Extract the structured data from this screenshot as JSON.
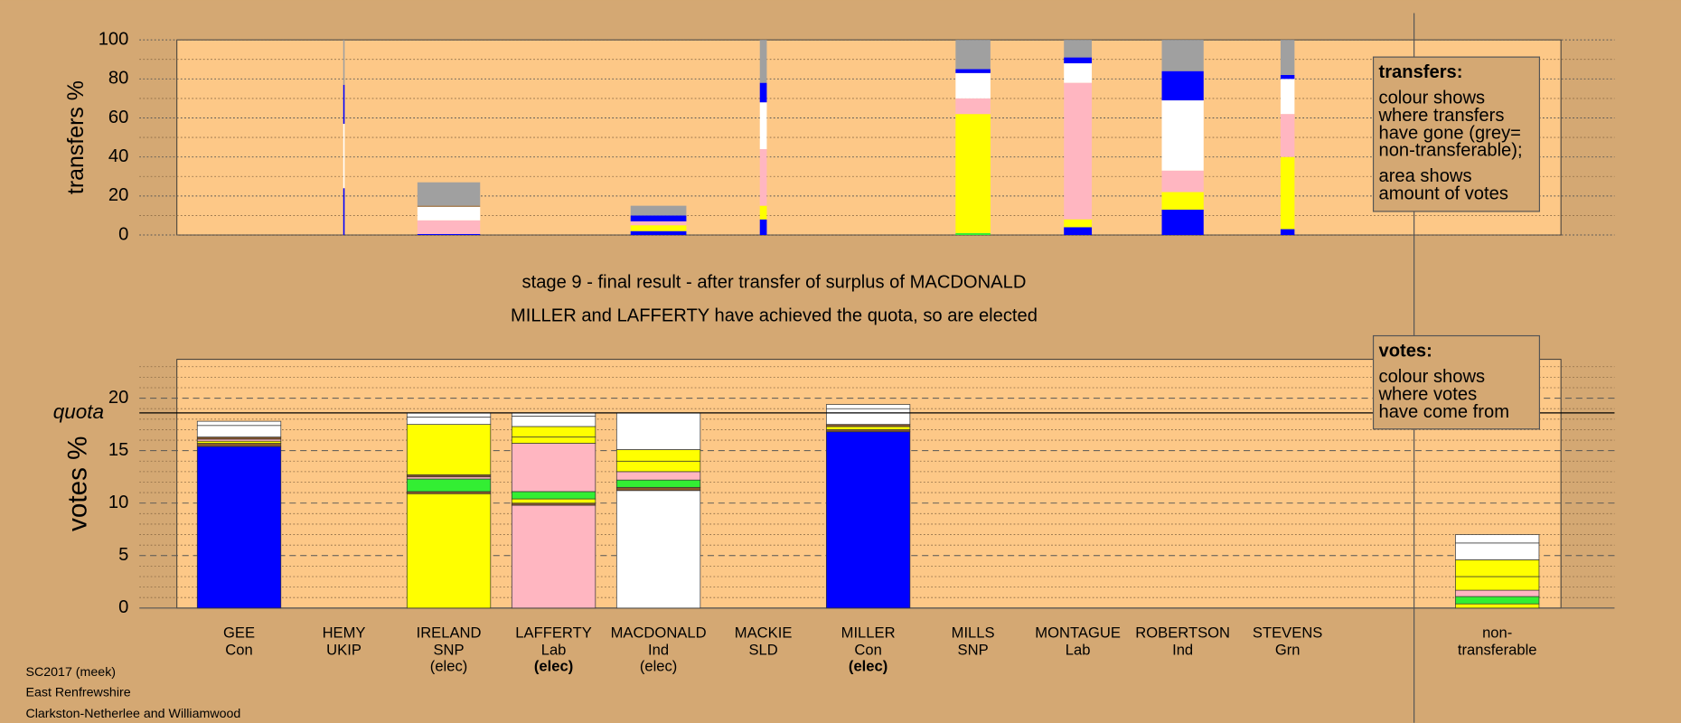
{
  "chart_data": [
    {
      "type": "stacked-bar",
      "y_label": "transfers %",
      "ylim": [
        0,
        100
      ],
      "yticks": [
        0,
        20,
        40,
        60,
        80,
        100
      ],
      "yminor": [
        10,
        30,
        50,
        70,
        90
      ],
      "grid": true,
      "legend": {
        "heading": "transfers:",
        "lines": [
          "colour shows",
          "where transfers",
          "have gone (grey=",
          "non-transferable);"
        ],
        "note_lines": [
          "area shows",
          "amount of votes"
        ]
      },
      "stacks": [
        {
          "colors": [],
          "values": []
        },
        {
          "amount": 0.1,
          "colors": [
            "#0000ff",
            "#ffffff",
            "#0000ff",
            "#a0a0a0"
          ],
          "values": [
            24,
            33,
            20,
            23
          ]
        },
        {
          "amount": 4.5,
          "colors": [
            "#0000ff",
            "#ffb6c1",
            "#ffffff",
            "#8b5a2b",
            "#a0a0a0"
          ],
          "values": [
            0.5,
            7,
            7,
            0.5,
            12
          ]
        },
        {
          "colors": [],
          "values": []
        },
        {
          "amount": 4,
          "colors": [
            "#0000ff",
            "#ffff00",
            "#ffb6c1",
            "#0000ff",
            "#a0a0a0"
          ],
          "values": [
            2,
            3,
            2,
            3,
            5
          ]
        },
        {
          "amount": 0.5,
          "colors": [
            "#0000ff",
            "#ffff00",
            "#ffb6c1",
            "#ffffff",
            "#0000ff",
            "#a0a0a0"
          ],
          "values": [
            8,
            7,
            29,
            24,
            10,
            22
          ]
        },
        {
          "colors": [],
          "values": []
        },
        {
          "amount": 2.5,
          "colors": [
            "#33ee33",
            "#ffff00",
            "#ffb6c1",
            "#ffffff",
            "#0000ff",
            "#a0a0a0"
          ],
          "values": [
            1,
            61,
            8,
            13,
            2,
            15
          ]
        },
        {
          "amount": 2,
          "colors": [
            "#0000ff",
            "#ffff00",
            "#ffb6c1",
            "#ffffff",
            "#0000ff",
            "#a0a0a0"
          ],
          "values": [
            4,
            4,
            70,
            10,
            3,
            9
          ]
        },
        {
          "amount": 3,
          "colors": [
            "#0000ff",
            "#ffff00",
            "#ffb6c1",
            "#ffffff",
            "#0000ff",
            "#a0a0a0"
          ],
          "values": [
            13,
            9,
            11,
            36,
            15,
            16
          ]
        },
        {
          "amount": 1,
          "colors": [
            "#0000ff",
            "#ffff00",
            "#ffb6c1",
            "#ffffff",
            "#0000ff",
            "#a0a0a0"
          ],
          "values": [
            3,
            37,
            22,
            18,
            2,
            18
          ]
        },
        {
          "colors": [],
          "values": []
        }
      ]
    },
    {
      "type": "stacked-bar",
      "title": "stage 9 - final result - after transfer of surplus of MACDONALD",
      "subtitle": "MILLER and LAFFERTY have achieved the quota, so are elected",
      "y_label": "votes %",
      "ylim": [
        0,
        23.7
      ],
      "yticks": [
        0,
        5,
        10,
        15,
        20
      ],
      "yminor": [
        1,
        2,
        3,
        4,
        6,
        7,
        8,
        9,
        11,
        12,
        13,
        14,
        16,
        17,
        18,
        19,
        21,
        22,
        23
      ],
      "grid": true,
      "quota": 18.6,
      "quota_label": "quota",
      "legend": {
        "heading": "votes:",
        "lines": [
          "colour shows",
          "where votes",
          "have come from"
        ]
      },
      "categories": [
        "GEE",
        "HEMY",
        "IRELAND",
        "LAFFERTY",
        "MACDONALD",
        "MACKIE",
        "MILLER",
        "MILLS",
        "MONTAGUE",
        "ROBERTSON",
        "STEVENS",
        "non-"
      ],
      "parties": [
        "Con",
        "UKIP",
        "SNP",
        "Lab",
        "Ind",
        "SLD",
        "Con",
        "SNP",
        "Lab",
        "Ind",
        "Grn",
        "transferable"
      ],
      "status": [
        null,
        null,
        "(elec)",
        "(elec)",
        "(elec)",
        null,
        "(elec)",
        null,
        null,
        null,
        null,
        null
      ],
      "status_bold": [
        false,
        false,
        false,
        true,
        false,
        false,
        true,
        false,
        false,
        false,
        false,
        false
      ],
      "stacks": [
        {
          "colors": [
            "#0000ff",
            "#8b5a2b",
            "#ffff00",
            "#ffb6c1",
            "#8b5a2b",
            "#ffffff",
            "#ffffff"
          ],
          "values": [
            15.4,
            0.3,
            0.2,
            0.2,
            0.2,
            1.1,
            0.4
          ]
        },
        {
          "colors": [],
          "values": []
        },
        {
          "colors": [
            "#ffff00",
            "#8b5a2b",
            "#33ee33",
            "#ffb6c1",
            "#8b5a2b",
            "#ffff00",
            "#ffffff",
            "#ffffff"
          ],
          "values": [
            10.9,
            0.2,
            1.2,
            0.2,
            0.2,
            4.8,
            0.7,
            0.4
          ]
        },
        {
          "colors": [
            "#ffb6c1",
            "#8b5a2b",
            "#ffff00",
            "#33ee33",
            "#ffb6c1",
            "#ffff00",
            "#ffff00",
            "#ffffff",
            "#ffffff"
          ],
          "values": [
            9.8,
            0.2,
            0.4,
            0.7,
            4.6,
            0.6,
            1.0,
            1.0,
            0.3
          ]
        },
        {
          "colors": [
            "#ffffff",
            "#8b5a2b",
            "#33ee33",
            "#ffb6c1",
            "#ffff00",
            "#ffff00",
            "#ffffff"
          ],
          "values": [
            11.2,
            0.3,
            0.7,
            0.8,
            1.0,
            1.1,
            3.5
          ]
        },
        {
          "colors": [],
          "values": []
        },
        {
          "colors": [
            "#0000ff",
            "#8b5a2b",
            "#ffff00",
            "#8b5a2b",
            "#ffffff",
            "#ffffff"
          ],
          "values": [
            16.8,
            0.2,
            0.3,
            0.2,
            1.5,
            0.4
          ]
        },
        {
          "colors": [],
          "values": []
        },
        {
          "colors": [],
          "values": []
        },
        {
          "colors": [],
          "values": []
        },
        {
          "colors": [],
          "values": []
        },
        {
          "colors": [
            "#ffff00",
            "#33ee33",
            "#ffb6c1",
            "#ffff00",
            "#ffff00",
            "#ffffff",
            "#ffffff"
          ],
          "values": [
            0.4,
            0.7,
            0.6,
            1.3,
            1.6,
            1.6,
            0.8
          ]
        }
      ]
    }
  ],
  "footer": [
    "SC2017 (meek)",
    "East Renfrewshire",
    "Clarkston-Netherlee and Williamwood"
  ]
}
